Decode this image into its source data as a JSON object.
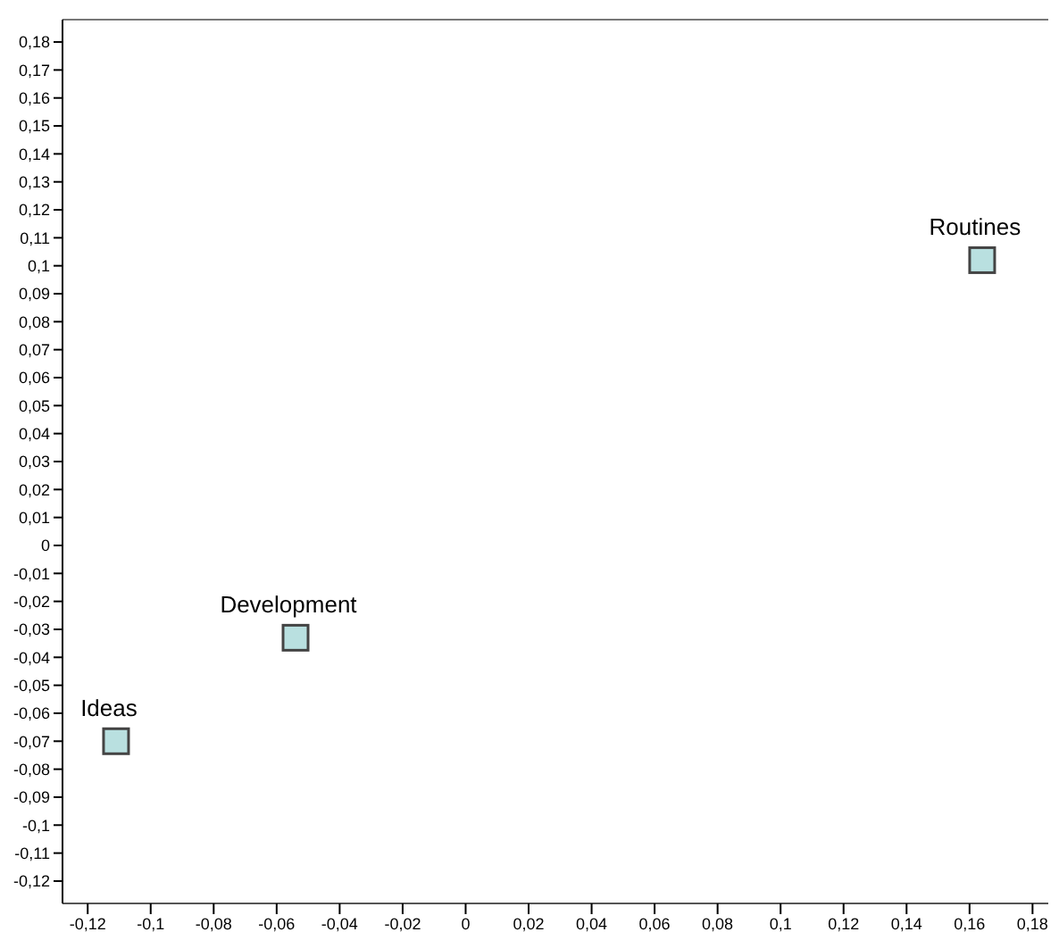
{
  "chart_data": {
    "type": "scatter",
    "x": [
      0.164,
      -0.054,
      -0.111
    ],
    "values": [
      0.102,
      -0.033,
      -0.07
    ],
    "color": "#b9e0e0",
    "marker": "square",
    "xlim": [
      -0.128,
      0.185
    ],
    "ylim": [
      -0.128,
      0.188
    ],
    "xticks": [
      {
        "value": -0.12,
        "label": "-0,12"
      },
      {
        "value": -0.1,
        "label": "-0,1"
      },
      {
        "value": -0.08,
        "label": "-0,08"
      },
      {
        "value": -0.06,
        "label": "-0,06"
      },
      {
        "value": -0.04,
        "label": "-0,04"
      },
      {
        "value": -0.02,
        "label": "-0,02"
      },
      0,
      {
        "value": 0.02,
        "label": "0,02"
      },
      {
        "value": 0.04,
        "label": "0,04"
      },
      {
        "value": 0.06,
        "label": "0,06"
      },
      {
        "value": 0.08,
        "label": "0,08"
      },
      {
        "value": 0.1,
        "label": "0,1"
      },
      {
        "value": 0.12,
        "label": "0,12"
      },
      {
        "value": 0.14,
        "label": "0,14"
      },
      {
        "value": 0.16,
        "label": "0,16"
      },
      {
        "value": 0.18,
        "label": "0,18"
      }
    ],
    "yticks": [
      {
        "value": -0.12,
        "label": "-0,12"
      },
      {
        "value": -0.11,
        "label": "-0,11"
      },
      {
        "value": -0.1,
        "label": "-0,1"
      },
      {
        "value": -0.09,
        "label": "-0,09"
      },
      {
        "value": -0.08,
        "label": "-0,08"
      },
      {
        "value": -0.07,
        "label": "-0,07"
      },
      {
        "value": -0.06,
        "label": "-0,06"
      },
      {
        "value": -0.05,
        "label": "-0,05"
      },
      {
        "value": -0.04,
        "label": "-0,04"
      },
      {
        "value": -0.03,
        "label": "-0,03"
      },
      {
        "value": -0.02,
        "label": "-0,02"
      },
      {
        "value": -0.01,
        "label": "-0,01"
      },
      0,
      {
        "value": 0.01,
        "label": "0,01"
      },
      {
        "value": 0.02,
        "label": "0,02"
      },
      {
        "value": 0.03,
        "label": "0,03"
      },
      {
        "value": 0.04,
        "label": "0,04"
      },
      {
        "value": 0.05,
        "label": "0,05"
      },
      {
        "value": 0.06,
        "label": "0,06"
      },
      {
        "value": 0.07,
        "label": "0,07"
      },
      {
        "value": 0.08,
        "label": "0,08"
      },
      {
        "value": 0.09,
        "label": "0,09"
      },
      {
        "value": 0.1,
        "label": "0,1"
      },
      {
        "value": 0.11,
        "label": "0,11"
      },
      {
        "value": 0.12,
        "label": "0,12"
      },
      {
        "value": 0.13,
        "label": "0,13"
      },
      {
        "value": 0.14,
        "label": "0,14"
      },
      {
        "value": 0.15,
        "label": "0,15"
      },
      {
        "value": 0.16,
        "label": "0,16"
      },
      {
        "value": 0.17,
        "label": "0,17"
      },
      {
        "value": 0.18,
        "label": "0,18"
      }
    ],
    "annotations": [
      {
        "text": "Routines",
        "x": 0.164,
        "y": 0.102
      },
      {
        "text": "Development",
        "x": -0.054,
        "y": -0.033
      },
      {
        "text": "Ideas",
        "x": -0.111,
        "y": -0.07
      }
    ],
    "grid": false,
    "legend": false
  }
}
